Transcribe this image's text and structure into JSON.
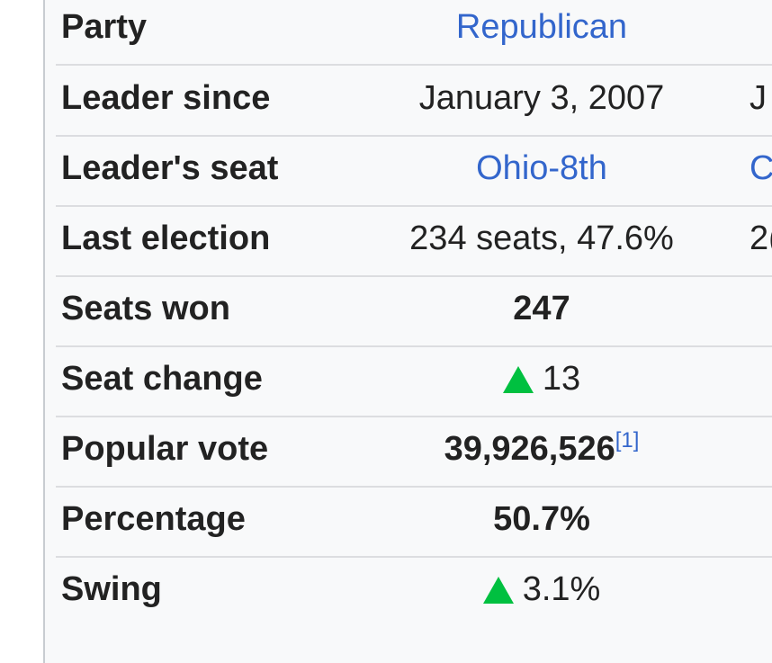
{
  "rows": [
    {
      "label": "Party",
      "value": "Republican",
      "peek": ""
    },
    {
      "label": "Leader since",
      "value": "January 3, 2007",
      "peek": "J"
    },
    {
      "label": "Leader's seat",
      "value": "Ohio-8th",
      "peek": "C"
    },
    {
      "label": "Last election",
      "value": "234 seats, 47.6%",
      "peek": "2("
    },
    {
      "label": "Seats won",
      "value": "247"
    },
    {
      "label": "Seat change",
      "value": "13",
      "trend": "up"
    },
    {
      "label": "Popular vote",
      "value": "39,926,526",
      "ref": "[1]"
    },
    {
      "label": "Percentage",
      "value": "50.7%"
    },
    {
      "label": "Swing",
      "value": "3.1%",
      "trend": "up"
    }
  ],
  "colors": {
    "link": "#3366cc",
    "increase": "#00c040",
    "text": "#222222",
    "panel": "#f8f9fa"
  },
  "icons": {
    "increase": "green-up-triangle-icon"
  }
}
